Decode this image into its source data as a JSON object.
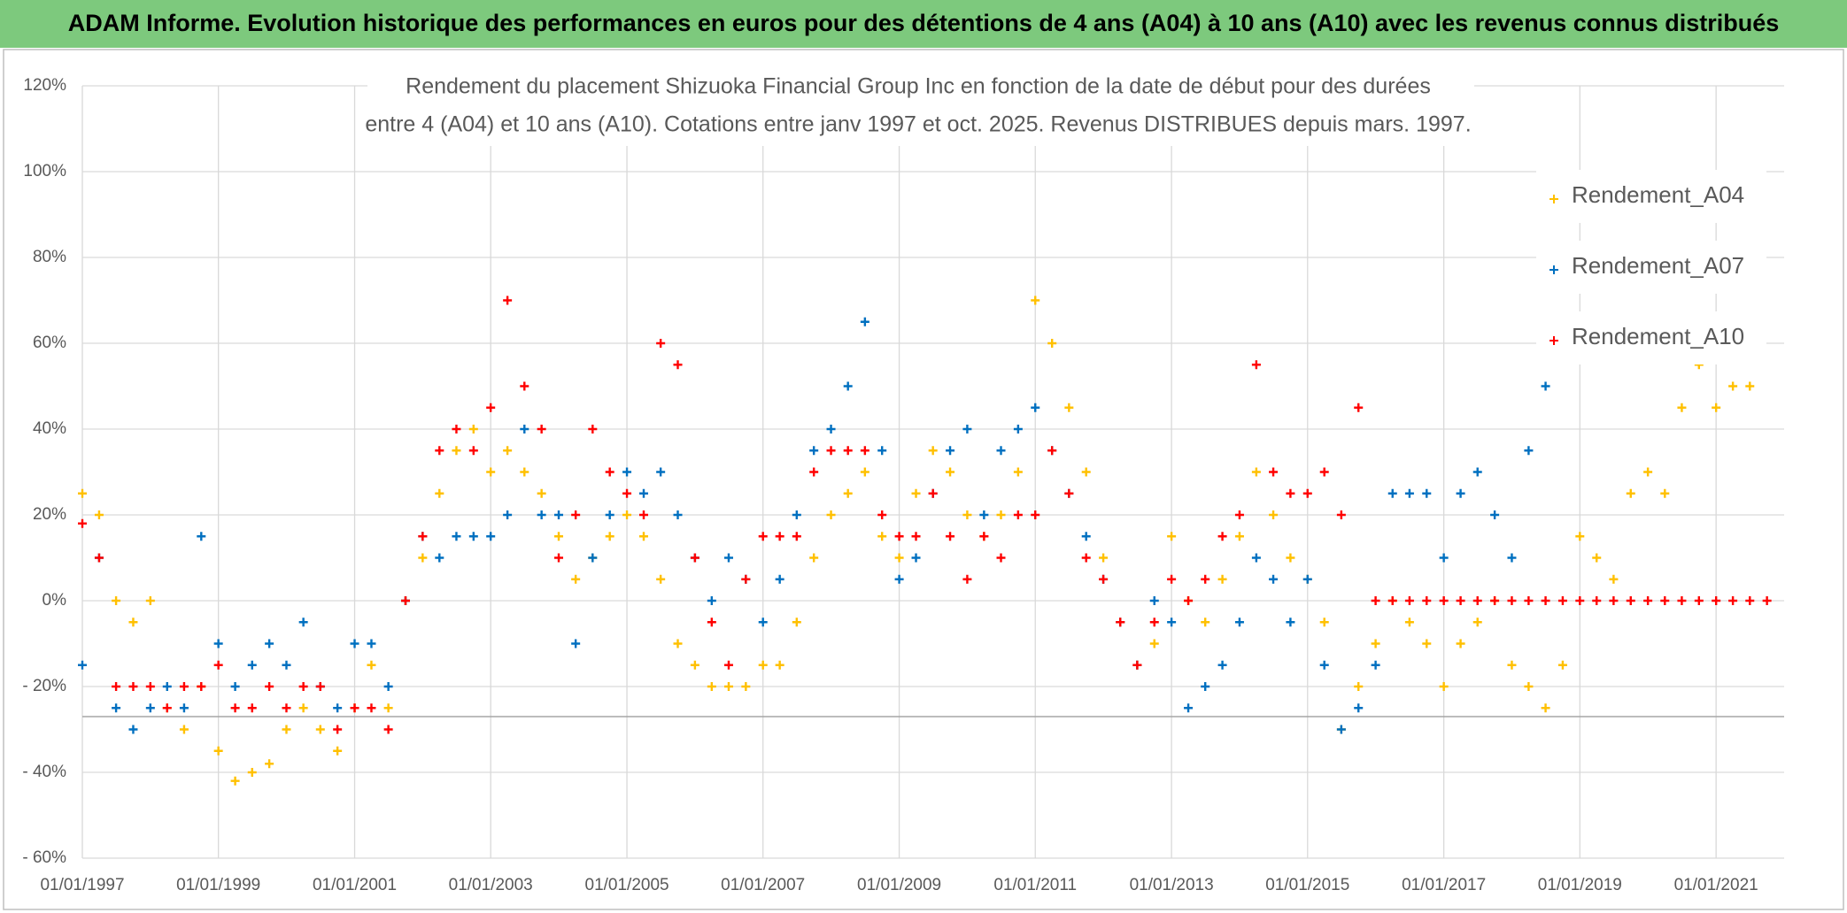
{
  "header": {
    "title": "ADAM Informe. Evolution historique des performances en euros pour des détentions de 4 ans (A04) à 10 ans (A10) avec les revenus connus distribués"
  },
  "chart_data": {
    "type": "scatter",
    "title": [
      "Rendement du placement Shizuoka Financial Group Inc en fonction de la date de début pour des durées",
      "entre 4 (A04) et 10 ans (A10). Cotations entre janv 1997 et oct. 2025. Revenus DISTRIBUES depuis mars. 1997."
    ],
    "x": [
      "01/01/1997",
      "01/04/1997",
      "01/07/1997",
      "01/10/1997",
      "01/01/1998",
      "01/04/1998",
      "01/07/1998",
      "01/10/1998",
      "01/01/1999",
      "01/04/1999",
      "01/07/1999",
      "01/10/1999",
      "01/01/2000",
      "01/04/2000",
      "01/07/2000",
      "01/10/2000",
      "01/01/2001",
      "01/04/2001",
      "01/07/2001",
      "01/10/2001",
      "01/01/2002",
      "01/04/2002",
      "01/07/2002",
      "01/10/2002",
      "01/01/2003",
      "01/04/2003",
      "01/07/2003",
      "01/10/2003",
      "01/01/2004",
      "01/04/2004",
      "01/07/2004",
      "01/10/2004",
      "01/01/2005",
      "01/04/2005",
      "01/07/2005",
      "01/10/2005",
      "01/01/2006",
      "01/04/2006",
      "01/07/2006",
      "01/10/2006",
      "01/01/2007",
      "01/04/2007",
      "01/07/2007",
      "01/10/2007",
      "01/01/2008",
      "01/04/2008",
      "01/07/2008",
      "01/10/2008",
      "01/01/2009",
      "01/04/2009",
      "01/07/2009",
      "01/10/2009",
      "01/01/2010",
      "01/04/2010",
      "01/07/2010",
      "01/10/2010",
      "01/01/2011",
      "01/04/2011",
      "01/07/2011",
      "01/10/2011",
      "01/01/2012",
      "01/04/2012",
      "01/07/2012",
      "01/10/2012",
      "01/01/2013",
      "01/04/2013",
      "01/07/2013",
      "01/10/2013",
      "01/01/2014",
      "01/04/2014",
      "01/07/2014",
      "01/10/2014",
      "01/01/2015",
      "01/04/2015",
      "01/07/2015",
      "01/10/2015",
      "01/01/2016",
      "01/04/2016",
      "01/07/2016",
      "01/10/2016",
      "01/01/2017",
      "01/04/2017",
      "01/07/2017",
      "01/10/2017",
      "01/01/2018",
      "01/04/2018",
      "01/07/2018",
      "01/10/2018",
      "01/01/2019",
      "01/04/2019",
      "01/07/2019",
      "01/10/2019",
      "01/01/2020",
      "01/04/2020",
      "01/07/2020",
      "01/10/2020",
      "01/01/2021",
      "01/04/2021",
      "01/07/2021",
      "01/10/2021"
    ],
    "series": [
      {
        "name": "Rendement_A04",
        "color": "#ffc000",
        "values": [
          25,
          20,
          0,
          -5,
          0,
          -25,
          -30,
          -20,
          -35,
          -42,
          -40,
          -38,
          -30,
          -25,
          -30,
          -35,
          -25,
          -15,
          -25,
          0,
          10,
          25,
          35,
          40,
          30,
          35,
          30,
          25,
          15,
          5,
          10,
          15,
          20,
          15,
          5,
          -10,
          -15,
          -20,
          -20,
          -20,
          -15,
          -15,
          -5,
          10,
          20,
          25,
          30,
          15,
          10,
          25,
          35,
          30,
          20,
          15,
          20,
          30,
          70,
          60,
          45,
          30,
          10,
          -5,
          -15,
          -10,
          15,
          0,
          -5,
          5,
          15,
          30,
          20,
          10,
          5,
          -5,
          -30,
          -20,
          -10,
          0,
          -5,
          -10,
          -20,
          -10,
          -5,
          0,
          -15,
          -20,
          -25,
          -15,
          15,
          10,
          5,
          25,
          30,
          25,
          45,
          55,
          45,
          50,
          50,
          null
        ]
      },
      {
        "name": "Rendement_A07",
        "color": "#0070c0",
        "values": [
          -15,
          10,
          -25,
          -30,
          -25,
          -20,
          -25,
          15,
          -10,
          -20,
          -15,
          -10,
          -15,
          -5,
          -20,
          -25,
          -10,
          -10,
          -20,
          0,
          15,
          10,
          15,
          15,
          15,
          20,
          40,
          20,
          20,
          -10,
          10,
          20,
          30,
          25,
          30,
          20,
          10,
          0,
          10,
          5,
          -5,
          5,
          20,
          35,
          40,
          50,
          65,
          35,
          5,
          10,
          25,
          35,
          40,
          20,
          35,
          40,
          45,
          35,
          25,
          15,
          5,
          -5,
          -15,
          0,
          -5,
          -25,
          -20,
          -15,
          -5,
          10,
          5,
          -5,
          5,
          -15,
          -30,
          -25,
          -15,
          25,
          25,
          25,
          10,
          25,
          30,
          20,
          10,
          35,
          50,
          null,
          null,
          null,
          null,
          null,
          null,
          null,
          null,
          null,
          null,
          null,
          null,
          null
        ]
      },
      {
        "name": "Rendement_A10",
        "color": "#ff0000",
        "values": [
          18,
          10,
          -20,
          -20,
          -20,
          -25,
          -20,
          -20,
          -15,
          -25,
          -25,
          -20,
          -25,
          -20,
          -20,
          -30,
          -25,
          -25,
          -30,
          0,
          15,
          35,
          40,
          35,
          45,
          70,
          50,
          40,
          10,
          20,
          40,
          30,
          25,
          20,
          60,
          55,
          10,
          -5,
          -15,
          5,
          15,
          15,
          15,
          30,
          35,
          35,
          35,
          20,
          15,
          15,
          25,
          15,
          5,
          15,
          10,
          20,
          20,
          35,
          25,
          10,
          5,
          -5,
          -15,
          -5,
          5,
          0,
          5,
          15,
          20,
          55,
          30,
          25,
          25,
          30,
          20,
          45,
          0,
          0,
          0,
          0,
          0,
          0,
          0,
          0,
          0,
          0,
          0,
          0,
          0,
          0,
          0,
          0,
          0,
          0,
          0,
          0,
          0,
          0,
          0,
          0
        ]
      }
    ],
    "xlim": [
      "01/01/1997",
      "01/01/2022"
    ],
    "xticks": [
      "01/01/1997",
      "01/01/1999",
      "01/01/2001",
      "01/01/2003",
      "01/01/2005",
      "01/01/2007",
      "01/01/2009",
      "01/01/2011",
      "01/01/2013",
      "01/01/2015",
      "01/01/2017",
      "01/01/2019",
      "01/01/2021"
    ],
    "ylim": [
      -60,
      120
    ],
    "yticks": [
      {
        "value": -60,
        "label": "- 60%"
      },
      {
        "value": -40,
        "label": "- 40%"
      },
      {
        "value": -20,
        "label": "- 20%"
      },
      {
        "value": 0,
        "label": "0%"
      },
      {
        "value": 20,
        "label": "20%"
      },
      {
        "value": 40,
        "label": "40%"
      },
      {
        "value": 60,
        "label": "60%"
      },
      {
        "value": 80,
        "label": "80%"
      },
      {
        "value": 100,
        "label": "100%"
      },
      {
        "value": 120,
        "label": "120%"
      }
    ],
    "grid": true,
    "legend": "upper right"
  }
}
